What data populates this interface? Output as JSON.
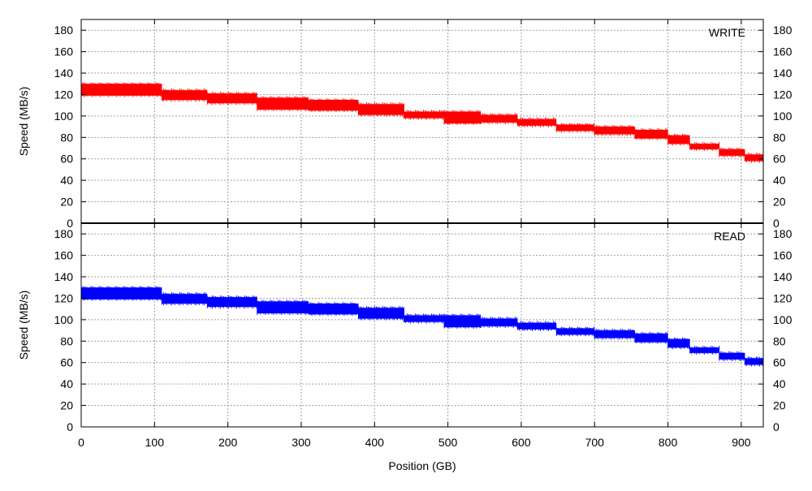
{
  "chart_data": [
    {
      "type": "area",
      "label": "WRITE",
      "color": "#ff0000",
      "ylabel": "Speed (MB/s)",
      "xlabel": "Position (GB)",
      "xlim": [
        0,
        930
      ],
      "ylim": [
        0,
        190
      ],
      "xticks": [
        0,
        100,
        200,
        300,
        400,
        500,
        600,
        700,
        800,
        900
      ],
      "yticks": [
        0,
        20,
        40,
        60,
        80,
        100,
        120,
        140,
        160,
        180
      ],
      "grid": true,
      "bands": [
        {
          "x": [
            0,
            110
          ],
          "low": 119,
          "high": 130
        },
        {
          "x": [
            110,
            172
          ],
          "low": 115,
          "high": 124
        },
        {
          "x": [
            172,
            240
          ],
          "low": 112,
          "high": 121
        },
        {
          "x": [
            240,
            310
          ],
          "low": 106,
          "high": 117
        },
        {
          "x": [
            310,
            378
          ],
          "low": 105,
          "high": 115
        },
        {
          "x": [
            378,
            440
          ],
          "low": 101,
          "high": 111
        },
        {
          "x": [
            440,
            495
          ],
          "low": 98,
          "high": 104
        },
        {
          "x": [
            495,
            545
          ],
          "low": 93,
          "high": 104
        },
        {
          "x": [
            545,
            595
          ],
          "low": 94,
          "high": 101
        },
        {
          "x": [
            595,
            648
          ],
          "low": 91,
          "high": 97
        },
        {
          "x": [
            648,
            700
          ],
          "low": 86,
          "high": 92
        },
        {
          "x": [
            700,
            755
          ],
          "low": 83,
          "high": 90
        },
        {
          "x": [
            755,
            800
          ],
          "low": 79,
          "high": 87
        },
        {
          "x": [
            800,
            830
          ],
          "low": 74,
          "high": 82
        },
        {
          "x": [
            830,
            870
          ],
          "low": 69,
          "high": 74
        },
        {
          "x": [
            870,
            905
          ],
          "low": 63,
          "high": 69
        },
        {
          "x": [
            905,
            930
          ],
          "low": 58,
          "high": 64
        }
      ]
    },
    {
      "type": "area",
      "label": "READ",
      "color": "#0000ff",
      "ylabel": "Speed (MB/s)",
      "xlabel": "Position (GB)",
      "xlim": [
        0,
        930
      ],
      "ylim": [
        0,
        190
      ],
      "xticks": [
        0,
        100,
        200,
        300,
        400,
        500,
        600,
        700,
        800,
        900
      ],
      "yticks": [
        0,
        20,
        40,
        60,
        80,
        100,
        120,
        140,
        160,
        180
      ],
      "grid": true,
      "bands": [
        {
          "x": [
            0,
            110
          ],
          "low": 119,
          "high": 130
        },
        {
          "x": [
            110,
            172
          ],
          "low": 115,
          "high": 124
        },
        {
          "x": [
            172,
            240
          ],
          "low": 112,
          "high": 121
        },
        {
          "x": [
            240,
            310
          ],
          "low": 106,
          "high": 117
        },
        {
          "x": [
            310,
            378
          ],
          "low": 105,
          "high": 115
        },
        {
          "x": [
            378,
            440
          ],
          "low": 101,
          "high": 111
        },
        {
          "x": [
            440,
            495
          ],
          "low": 98,
          "high": 104
        },
        {
          "x": [
            495,
            545
          ],
          "low": 93,
          "high": 104
        },
        {
          "x": [
            545,
            595
          ],
          "low": 94,
          "high": 101
        },
        {
          "x": [
            595,
            648
          ],
          "low": 91,
          "high": 97
        },
        {
          "x": [
            648,
            700
          ],
          "low": 86,
          "high": 92
        },
        {
          "x": [
            700,
            755
          ],
          "low": 83,
          "high": 90
        },
        {
          "x": [
            755,
            800
          ],
          "low": 79,
          "high": 87
        },
        {
          "x": [
            800,
            830
          ],
          "low": 74,
          "high": 82
        },
        {
          "x": [
            830,
            870
          ],
          "low": 69,
          "high": 74
        },
        {
          "x": [
            870,
            905
          ],
          "low": 63,
          "high": 69
        },
        {
          "x": [
            905,
            930
          ],
          "low": 58,
          "high": 64
        }
      ]
    }
  ]
}
